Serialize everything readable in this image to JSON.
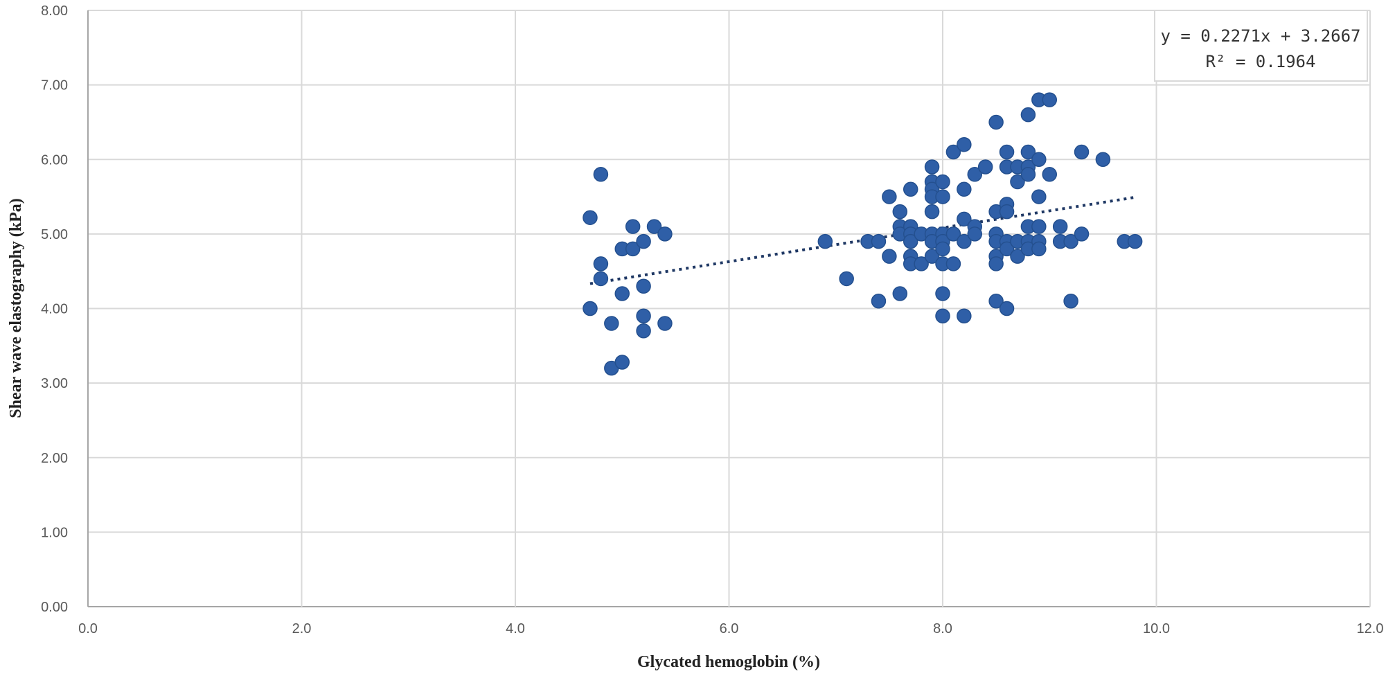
{
  "chart_data": {
    "type": "scatter",
    "title": "",
    "xlabel": "Glycated hemoglobin (%)",
    "ylabel": "Shear wave elastography (kPa)",
    "xlim": [
      0,
      12
    ],
    "ylim": [
      0,
      8
    ],
    "x_ticks": [
      "0.0",
      "2.0",
      "4.0",
      "6.0",
      "8.0",
      "10.0",
      "12.0"
    ],
    "y_ticks": [
      "0.00",
      "1.00",
      "2.00",
      "3.00",
      "4.00",
      "5.00",
      "6.00",
      "7.00",
      "8.00"
    ],
    "grid": true,
    "point_color": "#2f5fa7",
    "trendline": {
      "type": "linear",
      "style": "dotted",
      "color": "#1f3864",
      "slope": 0.2271,
      "intercept": 3.2667,
      "x_range": [
        4.7,
        9.8
      ],
      "equation": "y = 0.2271x + 3.2667",
      "r_squared": "R² = 0.1964"
    },
    "points": [
      [
        4.7,
        5.22
      ],
      [
        4.8,
        5.8
      ],
      [
        4.8,
        4.6
      ],
      [
        4.8,
        4.4
      ],
      [
        4.7,
        4.0
      ],
      [
        4.9,
        3.8
      ],
      [
        4.9,
        3.2
      ],
      [
        5.0,
        3.28
      ],
      [
        5.0,
        4.8
      ],
      [
        5.1,
        5.1
      ],
      [
        5.1,
        4.8
      ],
      [
        5.2,
        4.9
      ],
      [
        5.0,
        4.2
      ],
      [
        5.2,
        4.3
      ],
      [
        5.2,
        3.9
      ],
      [
        5.2,
        3.7
      ],
      [
        5.3,
        5.1
      ],
      [
        5.4,
        5.0
      ],
      [
        5.4,
        3.8
      ],
      [
        6.9,
        4.9
      ],
      [
        7.1,
        4.4
      ],
      [
        7.3,
        4.9
      ],
      [
        7.4,
        4.9
      ],
      [
        7.4,
        4.1
      ],
      [
        7.5,
        5.5
      ],
      [
        7.5,
        4.7
      ],
      [
        7.6,
        4.2
      ],
      [
        7.6,
        5.3
      ],
      [
        7.6,
        5.1
      ],
      [
        7.6,
        5.0
      ],
      [
        7.7,
        5.6
      ],
      [
        7.7,
        5.1
      ],
      [
        7.7,
        5.0
      ],
      [
        7.7,
        4.9
      ],
      [
        7.7,
        4.7
      ],
      [
        7.7,
        4.6
      ],
      [
        7.8,
        5.0
      ],
      [
        7.8,
        4.6
      ],
      [
        7.9,
        5.9
      ],
      [
        7.9,
        5.7
      ],
      [
        7.9,
        5.6
      ],
      [
        7.9,
        5.5
      ],
      [
        7.9,
        5.3
      ],
      [
        7.9,
        5.0
      ],
      [
        7.9,
        4.9
      ],
      [
        7.9,
        4.7
      ],
      [
        8.0,
        5.7
      ],
      [
        8.0,
        5.5
      ],
      [
        8.0,
        5.0
      ],
      [
        8.0,
        4.9
      ],
      [
        8.0,
        4.8
      ],
      [
        8.0,
        4.6
      ],
      [
        8.0,
        4.2
      ],
      [
        8.0,
        3.9
      ],
      [
        8.1,
        6.1
      ],
      [
        8.1,
        5.0
      ],
      [
        8.1,
        4.6
      ],
      [
        8.2,
        6.2
      ],
      [
        8.2,
        5.6
      ],
      [
        8.2,
        5.2
      ],
      [
        8.2,
        4.9
      ],
      [
        8.2,
        3.9
      ],
      [
        8.3,
        5.8
      ],
      [
        8.3,
        5.1
      ],
      [
        8.3,
        5.0
      ],
      [
        8.4,
        5.9
      ],
      [
        8.5,
        6.5
      ],
      [
        8.5,
        5.3
      ],
      [
        8.5,
        5.0
      ],
      [
        8.5,
        4.9
      ],
      [
        8.5,
        4.7
      ],
      [
        8.5,
        4.6
      ],
      [
        8.5,
        4.1
      ],
      [
        8.6,
        6.1
      ],
      [
        8.6,
        5.9
      ],
      [
        8.6,
        5.4
      ],
      [
        8.6,
        5.3
      ],
      [
        8.6,
        4.9
      ],
      [
        8.6,
        4.8
      ],
      [
        8.6,
        4.0
      ],
      [
        8.7,
        5.9
      ],
      [
        8.7,
        5.7
      ],
      [
        8.7,
        4.9
      ],
      [
        8.7,
        4.7
      ],
      [
        8.8,
        6.6
      ],
      [
        8.8,
        6.1
      ],
      [
        8.8,
        5.9
      ],
      [
        8.8,
        5.8
      ],
      [
        8.8,
        5.1
      ],
      [
        8.8,
        4.9
      ],
      [
        8.8,
        4.8
      ],
      [
        8.9,
        6.8
      ],
      [
        8.9,
        6.0
      ],
      [
        8.9,
        5.5
      ],
      [
        8.9,
        5.1
      ],
      [
        8.9,
        4.9
      ],
      [
        8.9,
        4.8
      ],
      [
        9.0,
        6.8
      ],
      [
        9.0,
        5.8
      ],
      [
        9.1,
        5.1
      ],
      [
        9.1,
        4.9
      ],
      [
        9.2,
        4.9
      ],
      [
        9.2,
        4.1
      ],
      [
        9.3,
        6.1
      ],
      [
        9.3,
        5.0
      ],
      [
        9.5,
        6.0
      ],
      [
        9.7,
        4.9
      ],
      [
        9.8,
        4.9
      ]
    ]
  }
}
